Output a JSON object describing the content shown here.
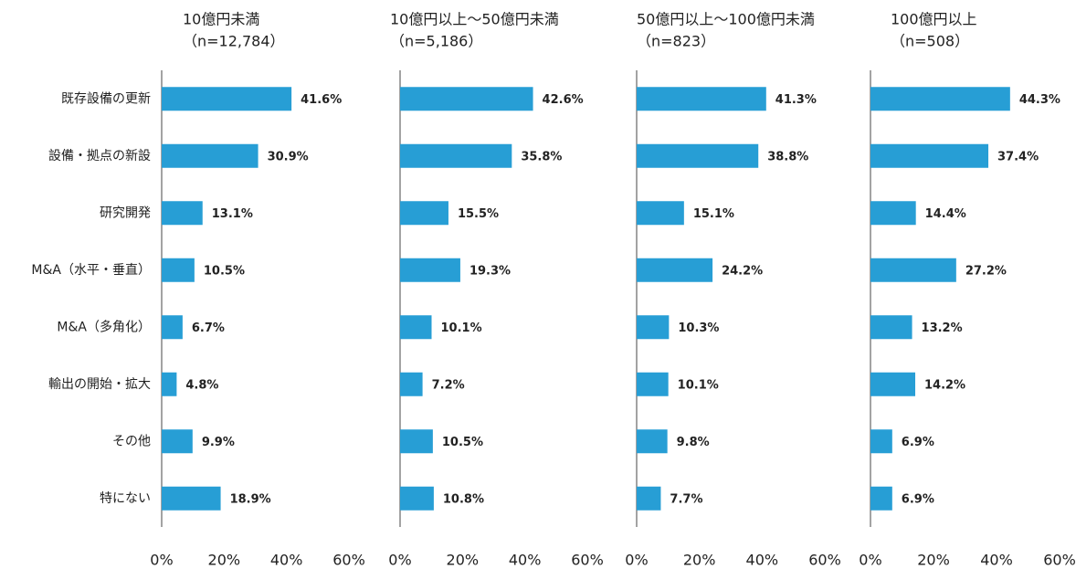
{
  "chart_data": [
    {
      "type": "bar",
      "orientation": "horizontal",
      "title": "10億円未満",
      "subtitle": "（n=12,784）",
      "categories": [
        "既存設備の更新",
        "設備・拠点の新設",
        "研究開発",
        "M&A（水平・垂直）",
        "M&A（多角化）",
        "輸出の開始・拡大",
        "その他",
        "特にない"
      ],
      "values": [
        41.6,
        30.9,
        13.1,
        10.5,
        6.7,
        4.8,
        9.9,
        18.9
      ],
      "value_labels": [
        "41.6%",
        "30.9%",
        "13.1%",
        "10.5%",
        "6.7%",
        "4.8%",
        "9.9%",
        "18.9%"
      ],
      "color": "#279ed5",
      "xlim": [
        0,
        60
      ],
      "xticks": [
        {
          "value": 0,
          "label": "0%"
        },
        {
          "value": 20,
          "label": "20%"
        },
        {
          "value": 40,
          "label": "40%"
        },
        {
          "value": 60,
          "label": "60%"
        }
      ]
    },
    {
      "type": "bar",
      "orientation": "horizontal",
      "title": "10億円以上～50億円未満",
      "subtitle": "（n=5,186）",
      "values": [
        42.6,
        35.8,
        15.5,
        19.3,
        10.1,
        7.2,
        10.5,
        10.8
      ],
      "value_labels": [
        "42.6%",
        "35.8%",
        "15.5%",
        "19.3%",
        "10.1%",
        "7.2%",
        "10.5%",
        "10.8%"
      ],
      "color": "#279ed5",
      "xlim": [
        0,
        60
      ],
      "xticks": [
        {
          "value": 0,
          "label": "0%"
        },
        {
          "value": 20,
          "label": "20%"
        },
        {
          "value": 40,
          "label": "40%"
        },
        {
          "value": 60,
          "label": "60%"
        }
      ]
    },
    {
      "type": "bar",
      "orientation": "horizontal",
      "title": "50億円以上～100億円未満",
      "subtitle": "（n=823）",
      "values": [
        41.3,
        38.8,
        15.1,
        24.2,
        10.3,
        10.1,
        9.8,
        7.7
      ],
      "value_labels": [
        "41.3%",
        "38.8%",
        "15.1%",
        "24.2%",
        "10.3%",
        "10.1%",
        "9.8%",
        "7.7%"
      ],
      "color": "#279ed5",
      "xlim": [
        0,
        60
      ],
      "xticks": [
        {
          "value": 0,
          "label": "0%"
        },
        {
          "value": 20,
          "label": "20%"
        },
        {
          "value": 40,
          "label": "40%"
        },
        {
          "value": 60,
          "label": "60%"
        }
      ]
    },
    {
      "type": "bar",
      "orientation": "horizontal",
      "title": "100億円以上",
      "subtitle": "（n=508）",
      "values": [
        44.3,
        37.4,
        14.4,
        27.2,
        13.2,
        14.2,
        6.9,
        6.9
      ],
      "value_labels": [
        "44.3%",
        "37.4%",
        "14.4%",
        "27.2%",
        "13.2%",
        "14.2%",
        "6.9%",
        "6.9%"
      ],
      "color": "#279ed5",
      "xlim": [
        0,
        60
      ],
      "xticks": [
        {
          "value": 0,
          "label": "0%"
        },
        {
          "value": 20,
          "label": "20%"
        },
        {
          "value": 40,
          "label": "40%"
        },
        {
          "value": 60,
          "label": "60%"
        }
      ]
    }
  ]
}
